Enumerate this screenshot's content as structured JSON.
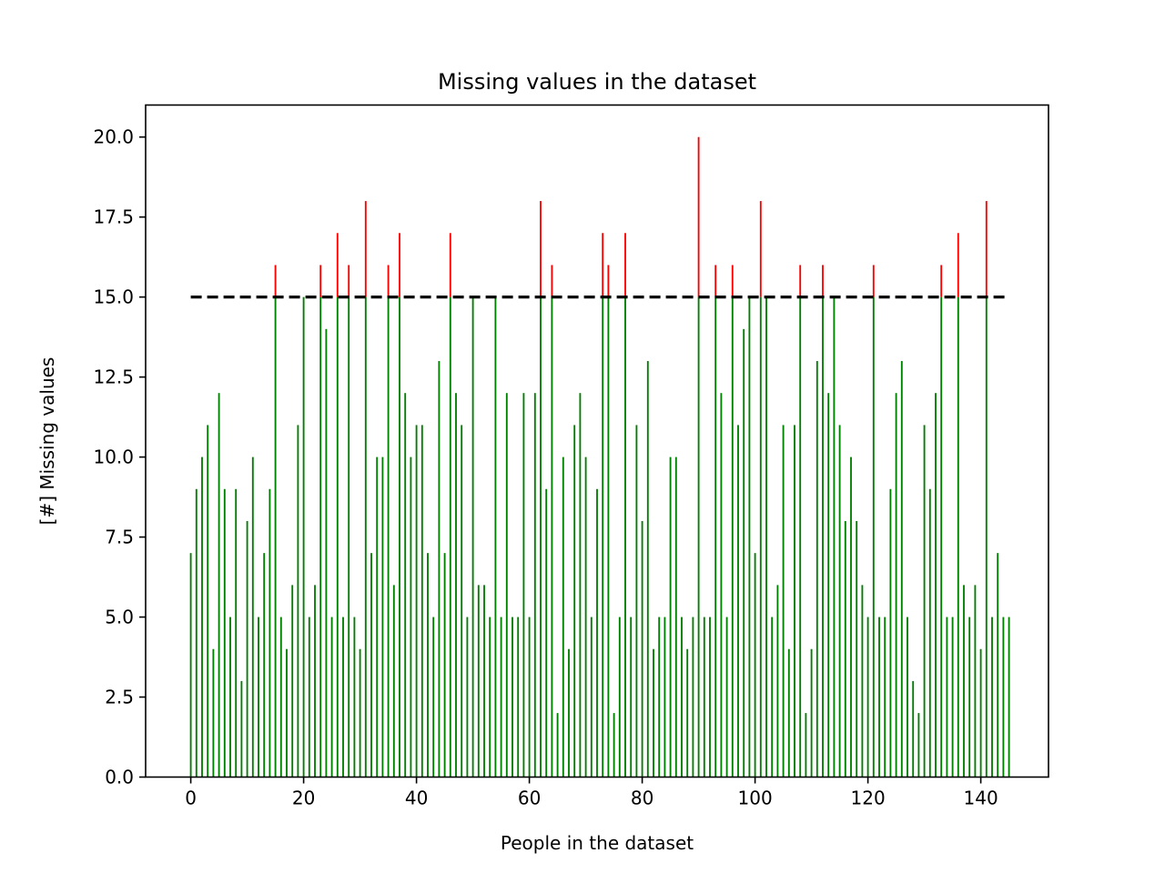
{
  "chart_data": {
    "type": "bar",
    "title": "Missing values in the dataset",
    "xlabel": "People in the dataset",
    "ylabel": "[#] Missing values",
    "xlim": [
      -8,
      152
    ],
    "ylim": [
      0,
      21
    ],
    "xticks": [
      0,
      20,
      40,
      60,
      80,
      100,
      120,
      140
    ],
    "xtick_labels": [
      "0",
      "20",
      "40",
      "60",
      "80",
      "100",
      "120",
      "140"
    ],
    "yticks": [
      0,
      2.5,
      5,
      7.5,
      10,
      12.5,
      15,
      17.5,
      20
    ],
    "ytick_labels": [
      "0.0",
      "2.5",
      "5.0",
      "7.5",
      "10.0",
      "12.5",
      "15.0",
      "17.5",
      "20.0"
    ],
    "threshold": 15,
    "threshold_range": [
      0,
      145
    ],
    "below_color": "#008000",
    "above_color": "#ff0000",
    "threshold_color": "#000000",
    "grid": false,
    "x": [
      0,
      1,
      2,
      3,
      4,
      5,
      6,
      7,
      8,
      9,
      10,
      11,
      12,
      13,
      14,
      15,
      16,
      17,
      18,
      19,
      20,
      21,
      22,
      23,
      24,
      25,
      26,
      27,
      28,
      29,
      30,
      31,
      32,
      33,
      34,
      35,
      36,
      37,
      38,
      39,
      40,
      41,
      42,
      43,
      44,
      45,
      46,
      47,
      48,
      49,
      50,
      51,
      52,
      53,
      54,
      55,
      56,
      57,
      58,
      59,
      60,
      61,
      62,
      63,
      64,
      65,
      66,
      67,
      68,
      69,
      70,
      71,
      72,
      73,
      74,
      75,
      76,
      77,
      78,
      79,
      80,
      81,
      82,
      83,
      84,
      85,
      86,
      87,
      88,
      89,
      90,
      91,
      92,
      93,
      94,
      95,
      96,
      97,
      98,
      99,
      100,
      101,
      102,
      103,
      104,
      105,
      106,
      107,
      108,
      109,
      110,
      111,
      112,
      113,
      114,
      115,
      116,
      117,
      118,
      119,
      120,
      121,
      122,
      123,
      124,
      125,
      126,
      127,
      128,
      129,
      130,
      131,
      132,
      133,
      134,
      135,
      136,
      137,
      138,
      139,
      140,
      141,
      142,
      143,
      144,
      145
    ],
    "values": [
      7,
      9,
      10,
      11,
      4,
      12,
      9,
      5,
      9,
      3,
      8,
      10,
      5,
      7,
      9,
      16,
      5,
      4,
      6,
      11,
      15,
      5,
      6,
      16,
      14,
      5,
      17,
      5,
      16,
      5,
      4,
      18,
      7,
      10,
      10,
      16,
      6,
      17,
      12,
      10,
      11,
      11,
      7,
      5,
      13,
      7,
      17,
      12,
      11,
      5,
      15,
      6,
      6,
      5,
      15,
      5,
      12,
      5,
      5,
      12,
      5,
      12,
      18,
      9,
      16,
      2,
      10,
      4,
      11,
      12,
      10,
      5,
      9,
      17,
      16,
      2,
      5,
      17,
      5,
      11,
      8,
      13,
      4,
      5,
      5,
      10,
      10,
      5,
      4,
      5,
      20,
      5,
      5,
      16,
      12,
      5,
      16,
      11,
      14,
      15,
      7,
      18,
      15,
      5,
      6,
      11,
      4,
      11,
      16,
      2,
      4,
      13,
      16,
      12,
      15,
      11,
      8,
      10,
      8,
      6,
      5,
      16,
      5,
      5,
      9,
      12,
      13,
      5,
      3,
      2,
      11,
      9,
      12,
      16,
      5,
      5,
      17,
      6,
      5,
      6,
      4,
      18,
      5,
      7,
      5,
      5
    ]
  }
}
